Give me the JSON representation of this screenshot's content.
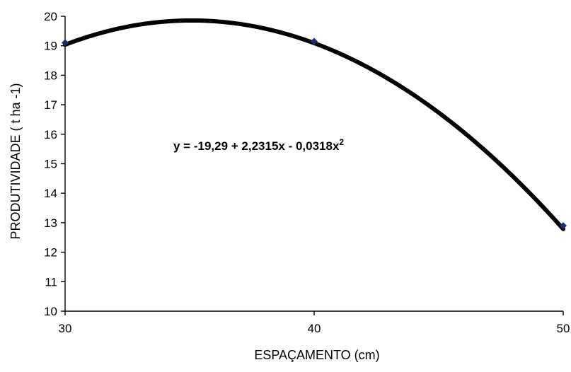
{
  "chart_data": {
    "type": "scatter",
    "title": "",
    "xlabel": "ESPAÇAMENTO  (cm)",
    "ylabel": "PRODUTIVIDADE ( t ha -1)",
    "xlim": [
      30,
      50
    ],
    "ylim": [
      10,
      20
    ],
    "x_ticks": [
      "30",
      "40",
      "50"
    ],
    "y_ticks": [
      "10",
      "11",
      "12",
      "13",
      "14",
      "15",
      "16",
      "17",
      "18",
      "19",
      "20"
    ],
    "grid": false,
    "legend": "none",
    "series": [
      {
        "x": [
          30,
          40,
          50
        ],
        "y": [
          19.1,
          19.15,
          12.9
        ],
        "marker_color": "#1f2a6e"
      }
    ],
    "trendline": {
      "type": "polynomial",
      "order": 2,
      "equation_prefix": "y = -19,29 + 2,2315x - 0,0318x",
      "equation_exponent": "2",
      "coefficients": [
        -19.29,
        2.2315,
        -0.0318
      ],
      "color": "#000000"
    }
  }
}
